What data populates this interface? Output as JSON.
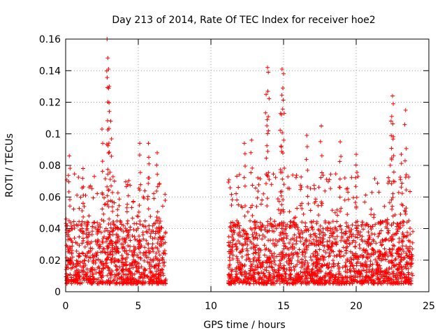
{
  "chart_data": {
    "type": "scatter",
    "title": "Day 213 of 2014, Rate Of TEC Index for receiver hoe2",
    "xlabel": "GPS time / hours",
    "ylabel": "ROTI / TECUs",
    "xlim": [
      0,
      25
    ],
    "ylim": [
      0,
      0.16
    ],
    "grid": true,
    "marker": "+",
    "color": "#ff0000",
    "x_ticks": [
      0,
      5,
      10,
      15,
      20,
      25
    ],
    "y_ticks": [
      0,
      0.02,
      0.04,
      0.06,
      0.08,
      0.1,
      0.12,
      0.14,
      0.16
    ],
    "x_tick_labels": [
      "0",
      "5",
      "10",
      "15",
      "20",
      "25"
    ],
    "y_tick_labels": [
      "0",
      "0.02",
      "0.04",
      "0.06",
      "0.08",
      "0.1",
      "0.12",
      "0.14",
      "0.16"
    ],
    "series": [
      {
        "name": "ROTI hoe2",
        "segments": [
          {
            "start": 0.0,
            "end": 6.9,
            "typical_range": [
              0.005,
              0.045
            ]
          },
          {
            "start": 11.2,
            "end": 23.9,
            "typical_range": [
              0.005,
              0.045
            ]
          }
        ],
        "peaks": [
          {
            "x": 0.25,
            "y": 0.086
          },
          {
            "x": 1.2,
            "y": 0.078
          },
          {
            "x": 2.5,
            "y": 0.103
          },
          {
            "x": 2.85,
            "y": 0.16
          },
          {
            "x": 2.9,
            "y": 0.148
          },
          {
            "x": 2.95,
            "y": 0.141
          },
          {
            "x": 3.0,
            "y": 0.13
          },
          {
            "x": 3.1,
            "y": 0.108
          },
          {
            "x": 5.1,
            "y": 0.094
          },
          {
            "x": 5.7,
            "y": 0.094
          },
          {
            "x": 6.3,
            "y": 0.088
          },
          {
            "x": 12.3,
            "y": 0.094
          },
          {
            "x": 12.8,
            "y": 0.096
          },
          {
            "x": 13.9,
            "y": 0.142
          },
          {
            "x": 13.95,
            "y": 0.139
          },
          {
            "x": 13.8,
            "y": 0.125
          },
          {
            "x": 14.9,
            "y": 0.141
          },
          {
            "x": 15.0,
            "y": 0.138
          },
          {
            "x": 14.95,
            "y": 0.129
          },
          {
            "x": 14.8,
            "y": 0.113
          },
          {
            "x": 16.6,
            "y": 0.099
          },
          {
            "x": 17.6,
            "y": 0.105
          },
          {
            "x": 18.9,
            "y": 0.095
          },
          {
            "x": 20.0,
            "y": 0.087
          },
          {
            "x": 22.5,
            "y": 0.124
          },
          {
            "x": 22.55,
            "y": 0.119
          },
          {
            "x": 22.4,
            "y": 0.108
          },
          {
            "x": 23.4,
            "y": 0.115
          },
          {
            "x": 23.1,
            "y": 0.087
          }
        ]
      }
    ]
  }
}
